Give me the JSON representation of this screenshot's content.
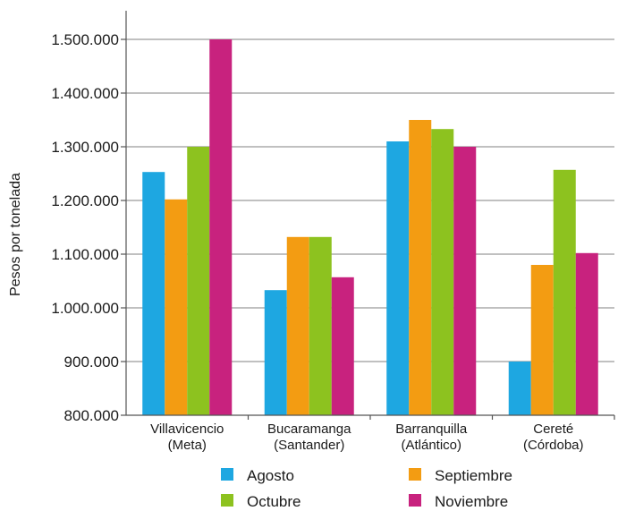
{
  "chart_data": {
    "type": "bar",
    "title": "",
    "xlabel": "",
    "ylabel": "Pesos por tonelada",
    "ylim": [
      800000,
      1500000
    ],
    "yticks": [
      800000,
      900000,
      1000000,
      1100000,
      1200000,
      1300000,
      1400000,
      1500000
    ],
    "ytick_labels": [
      "800.000",
      "900.000",
      "1.000.000",
      "1.100.000",
      "1.200.000",
      "1.300.000",
      "1.400.000",
      "1.500.000"
    ],
    "grid": true,
    "legend_position": "bottom",
    "categories": [
      [
        "Villavicencio",
        "(Meta)"
      ],
      [
        "Bucaramanga",
        "(Santander)"
      ],
      [
        "Barranquilla",
        "(Atlántico)"
      ],
      [
        "Cereté",
        "(Córdoba)"
      ]
    ],
    "series": [
      {
        "name": "Agosto",
        "color": "#1ea7e1",
        "values": [
          1253000,
          1033000,
          1310000,
          900000
        ]
      },
      {
        "name": "Septiembre",
        "color": "#f39c12",
        "values": [
          1202000,
          1132000,
          1350000,
          1080000
        ]
      },
      {
        "name": "Octubre",
        "color": "#8dc21f",
        "values": [
          1300000,
          1132000,
          1333000,
          1257000
        ]
      },
      {
        "name": "Noviembre",
        "color": "#c8227e",
        "values": [
          1500000,
          1057000,
          1300000,
          1102000
        ]
      }
    ]
  }
}
